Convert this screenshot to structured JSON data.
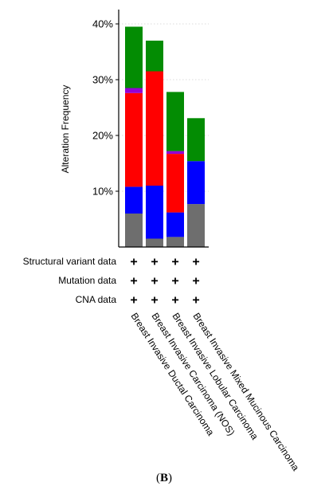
{
  "chart_data": {
    "type": "bar",
    "stacked": true,
    "ylabel": "Alteration Frequency",
    "yticks": [
      "10%",
      "20%",
      "30%",
      "40%"
    ],
    "ytick_values": [
      10,
      20,
      30,
      40
    ],
    "ylim": [
      0,
      42
    ],
    "grid": "dotted horizontal at tick values",
    "categories": [
      "Breast Invasive Ductal Carcinoma",
      "Breast Invasive Carcinoma (NOS)",
      "Breast Invasive Lobular Carcinoma",
      "Breast Invasive Mixed Mucinous Carcinoma"
    ],
    "series": [
      {
        "color": "#6e6e6e",
        "values": [
          6.0,
          1.5,
          1.8,
          7.7
        ]
      },
      {
        "color": "#0000ff",
        "values": [
          4.8,
          9.5,
          4.4,
          7.7
        ]
      },
      {
        "color": "#ff0000",
        "values": [
          16.8,
          20.5,
          10.5,
          0.0
        ]
      },
      {
        "color": "#9400d3",
        "values": [
          0.9,
          0.0,
          0.5,
          0.0
        ]
      },
      {
        "color": "#038c03",
        "values": [
          11.0,
          5.5,
          10.6,
          7.7
        ]
      }
    ],
    "profile_rows": [
      {
        "label": "Structural variant data",
        "marks": [
          "+",
          "+",
          "+",
          "+"
        ]
      },
      {
        "label": "Mutation data",
        "marks": [
          "+",
          "+",
          "+",
          "+"
        ]
      },
      {
        "label": "CNA data",
        "marks": [
          "+",
          "+",
          "+",
          "+"
        ]
      }
    ]
  },
  "caption": {
    "open": "(",
    "letter": "B",
    "close": ")"
  }
}
